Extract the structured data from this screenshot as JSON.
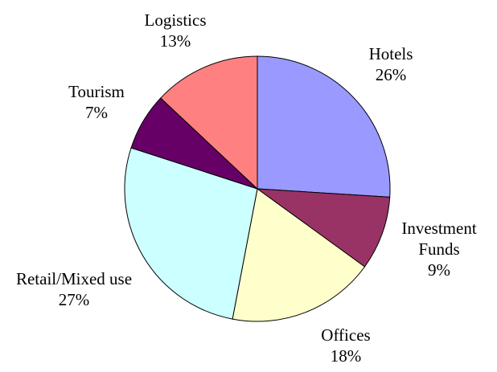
{
  "chart_data": {
    "type": "pie",
    "categories": [
      "Hotels",
      "Investment Funds",
      "Offices",
      "Retail/Mixed use",
      "Tourism",
      "Logistics"
    ],
    "values": [
      26,
      9,
      18,
      27,
      7,
      13
    ],
    "value_labels": [
      "26%",
      "9%",
      "18%",
      "27%",
      "7%",
      "13%"
    ],
    "colors": [
      "#9999ff",
      "#993366",
      "#ffffcc",
      "#ccffff",
      "#660066",
      "#ff8080"
    ]
  }
}
